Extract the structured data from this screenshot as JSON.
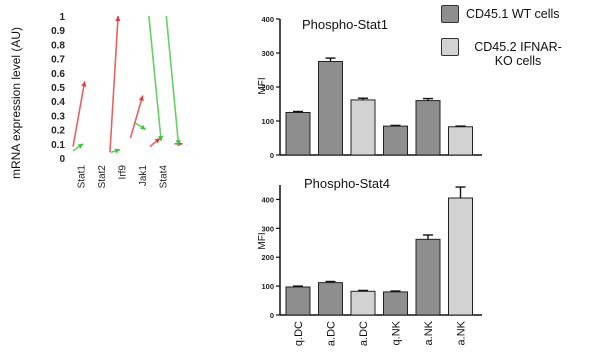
{
  "chart_data": [
    {
      "type": "line",
      "ylabel": "mRNA expression level (AU)",
      "ylim": [
        0,
        1
      ],
      "yticks": [
        "0",
        "0.1",
        "0.2",
        "0.3",
        "0.4",
        "0.5",
        "0.6",
        "0.7",
        "0.8",
        "0.9",
        "1"
      ],
      "categories": [
        "Stat1",
        "Stat2",
        "Irf9",
        "Jak1",
        "Stat4"
      ],
      "series": [
        {
          "color": "#e23a3a",
          "segments": [
            {
              "x0": 0.05,
              "y0": 0.08,
              "x1": 0.62,
              "y1": 0.54
            },
            {
              "x0": 1.85,
              "y0": 0.04,
              "x1": 2.25,
              "y1": 1.0
            },
            {
              "x0": 2.85,
              "y0": 0.14,
              "x1": 3.45,
              "y1": 0.44
            },
            {
              "x0": 3.8,
              "y0": 0.08,
              "x1": 4.3,
              "y1": 0.14
            },
            {
              "x0": 5.0,
              "y0": 0.1,
              "x1": 5.4,
              "y1": 0.1
            }
          ]
        },
        {
          "color": "#3ec43e",
          "segments": [
            {
              "x0": 0.05,
              "y0": 0.05,
              "x1": 0.55,
              "y1": 0.1
            },
            {
              "x0": 1.9,
              "y0": 0.04,
              "x1": 2.35,
              "y1": 0.06
            },
            {
              "x0": 3.05,
              "y0": 0.25,
              "x1": 3.6,
              "y1": 0.2
            },
            {
              "x0": 3.75,
              "y0": 1.0,
              "x1": 4.35,
              "y1": 0.12
            },
            {
              "x0": 4.6,
              "y0": 1.0,
              "x1": 5.2,
              "y1": 0.09
            }
          ]
        }
      ]
    },
    {
      "type": "bar",
      "title": "Phospho-Stat1",
      "ylabel": "MFI",
      "ylim": [
        0,
        400
      ],
      "yticks": [
        "0",
        "100",
        "200",
        "300",
        "400"
      ],
      "categories": [
        "q.DC",
        "a.DC",
        "a.DC",
        "q.NK",
        "a.NK",
        "a.NK"
      ],
      "values": [
        125,
        275,
        162,
        85,
        160,
        83
      ],
      "errors": [
        3,
        10,
        5,
        2,
        6,
        2
      ],
      "colors": [
        "#8e8e8e",
        "#8e8e8e",
        "#d2d2d2",
        "#8e8e8e",
        "#8e8e8e",
        "#d2d2d2"
      ]
    },
    {
      "type": "bar",
      "title": "Phospho-Stat4",
      "ylabel": "MFI",
      "ylim": [
        0,
        450
      ],
      "yticks": [
        "0",
        "100",
        "200",
        "300",
        "400"
      ],
      "categories": [
        "q.DC",
        "a.DC",
        "a.DC",
        "q.NK",
        "a.NK",
        "a.NK"
      ],
      "values": [
        97,
        112,
        82,
        80,
        262,
        405
      ],
      "errors": [
        3,
        4,
        3,
        3,
        15,
        38
      ],
      "colors": [
        "#8e8e8e",
        "#8e8e8e",
        "#d2d2d2",
        "#8e8e8e",
        "#8e8e8e",
        "#d2d2d2"
      ]
    }
  ],
  "legend": [
    {
      "label": "CD45.1 WT cells",
      "color": "#8e8e8e"
    },
    {
      "label": "CD45.2 IFNAR-KO cells",
      "color": "#d2d2d2"
    }
  ]
}
